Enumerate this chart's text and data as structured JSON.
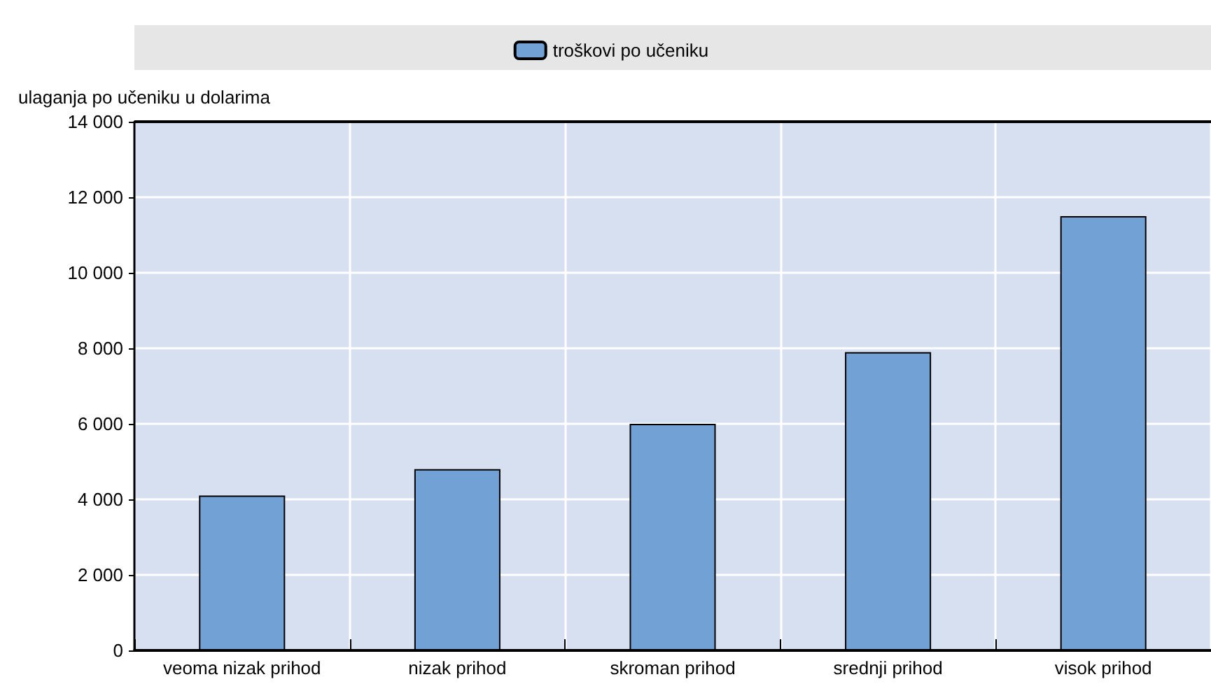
{
  "chart_data": {
    "type": "bar",
    "ylabel": "ulaganja po učeniku u dolarima",
    "categories": [
      "veoma nizak prihod",
      "nizak prihod",
      "skroman prihod",
      "srednji prihod",
      "visok prihod"
    ],
    "series": [
      {
        "name": "troškovi po učeniku",
        "color": "#72a2d5",
        "values": [
          4100,
          4800,
          6000,
          7900,
          11500
        ]
      }
    ],
    "ylim": [
      0,
      14000
    ],
    "yticks": [
      0,
      {
        "value": 2000,
        "label": "2 000"
      },
      {
        "value": 4000,
        "label": "4 000"
      },
      {
        "value": 6000,
        "label": "6 000"
      },
      {
        "value": 8000,
        "label": "8 000"
      },
      {
        "value": 10000,
        "label": "10 000"
      },
      {
        "value": 12000,
        "label": "12 000"
      },
      {
        "value": 14000,
        "label": "14 000"
      }
    ],
    "grid": true,
    "legend": "top"
  }
}
